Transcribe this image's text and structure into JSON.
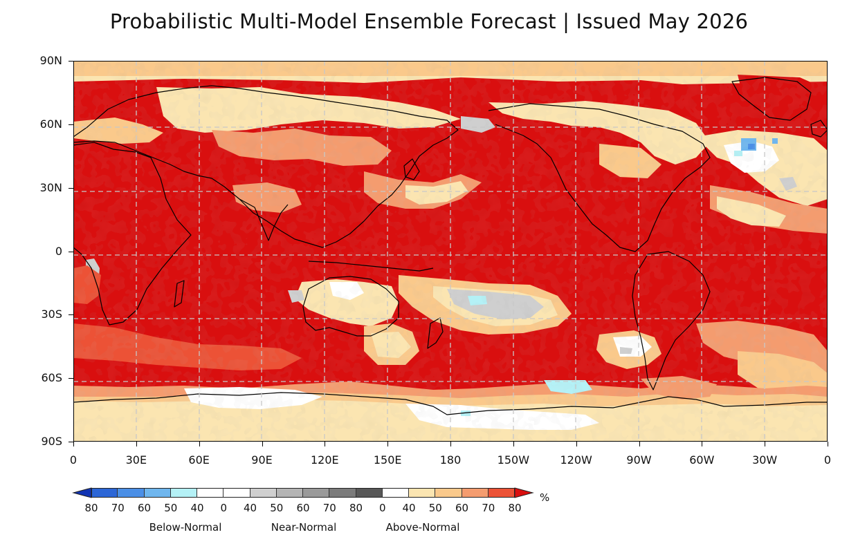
{
  "title": "Probabilistic Multi-Model Ensemble Forecast | Issued May 2026",
  "axes": {
    "lat_labels": [
      "90N",
      "60N",
      "30N",
      "0",
      "30S",
      "60S",
      "90S"
    ],
    "lon_labels": [
      "0",
      "30E",
      "60E",
      "90E",
      "120E",
      "150E",
      "180",
      "150W",
      "120W",
      "90W",
      "60W",
      "30W",
      "0"
    ],
    "lat_range": [
      -90,
      90
    ],
    "lon_range": [
      0,
      360
    ],
    "projection": "Plate Carree, 0-360 longitude",
    "gridlines": "dashed, every 30 degrees"
  },
  "map_content": {
    "dominant_category": "Above-Normal",
    "description_of_regions": [
      {
        "region": "Tropical and North Pacific",
        "category": "Above-Normal",
        "level": "70-80"
      },
      {
        "region": "Indian Ocean and Tropics",
        "category": "Above-Normal",
        "level": "70-80"
      },
      {
        "region": "Antarctica interior",
        "category": "Near-Normal / Above-Normal 40",
        "level": "0-40"
      },
      {
        "region": "South Pacific near 30S 170W",
        "category": "Near-Normal",
        "level": "40-50"
      },
      {
        "region": "North Atlantic near 55N 35W",
        "category": "Below-Normal",
        "level": "50-60"
      }
    ]
  },
  "colors": {
    "above_40": "#fbe5b1",
    "above_50": "#fac98b",
    "above_60": "#f49c6f",
    "above_70": "#ec5236",
    "above_80": "#d90f0f",
    "near_40": "#cfcfcf",
    "near_50": "#b4b4b4",
    "near_60": "#9a9a9a",
    "near_70": "#7b7b7b",
    "near_80": "#585858",
    "below_40": "#b4f1f6",
    "below_50": "#6fb6ee",
    "below_60": "#4b8fe6",
    "below_70": "#2c66d6",
    "below_80": "#1134b3",
    "white": "#ffffff"
  },
  "legend": {
    "ticks": [
      "80",
      "70",
      "60",
      "50",
      "40",
      "0",
      "40",
      "50",
      "60",
      "70",
      "80",
      "0",
      "40",
      "50",
      "60",
      "70",
      "80"
    ],
    "groups": [
      "Below-Normal",
      "Near-Normal",
      "Above-Normal"
    ],
    "unit": "%"
  }
}
